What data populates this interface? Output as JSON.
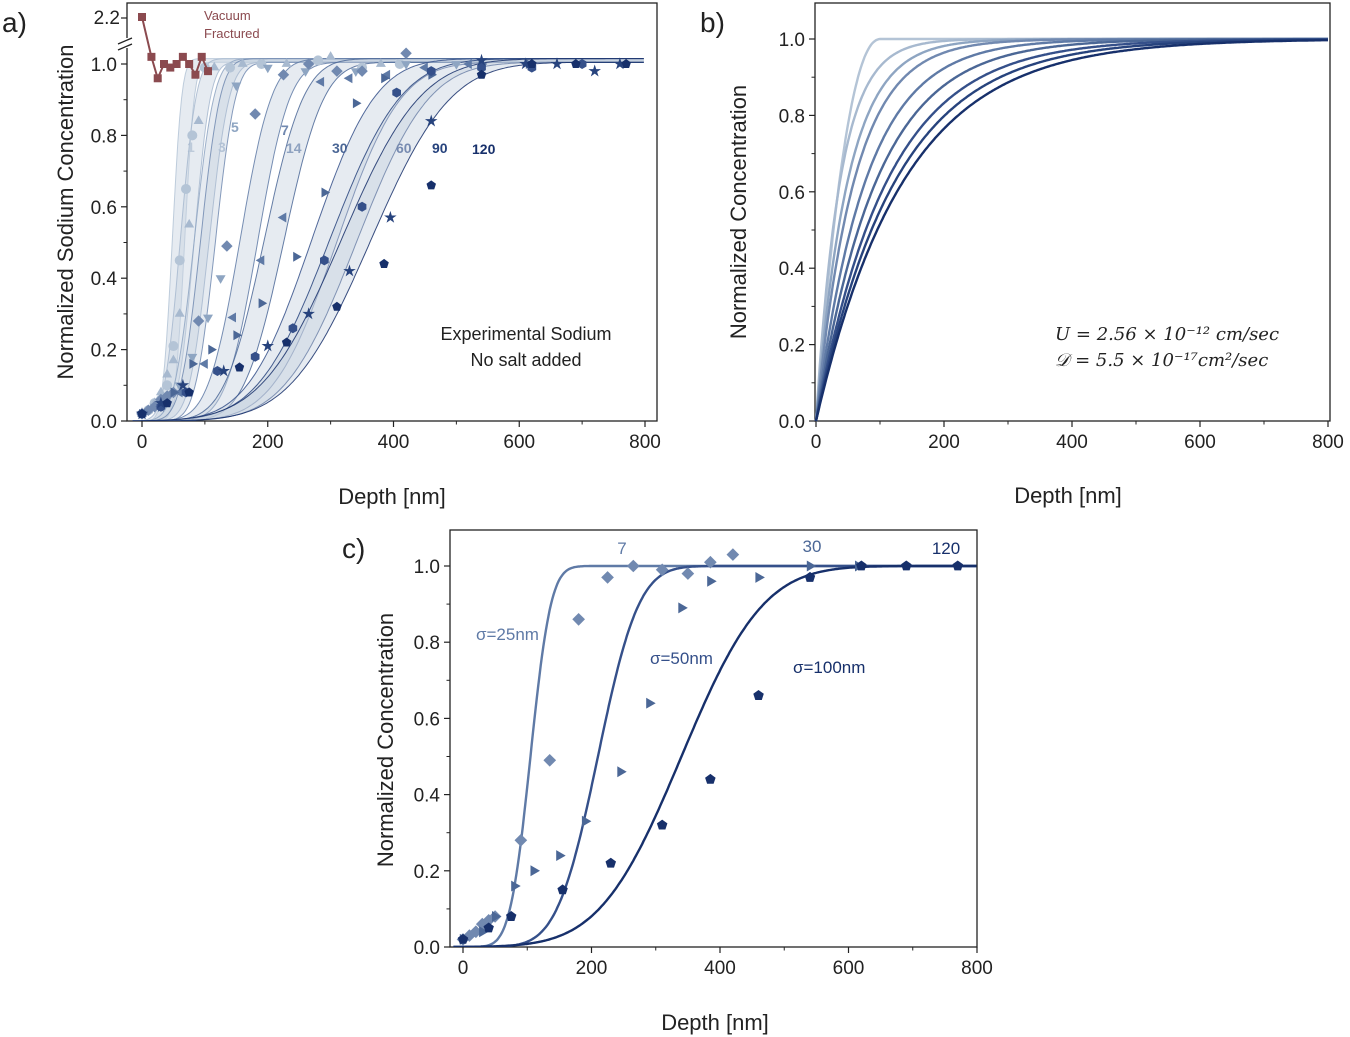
{
  "figure": {
    "panels": [
      {
        "label": "a)",
        "xlabel": "Depth [nm]",
        "ylabel": "Normalized Sodium Concentration",
        "xticks": [
          "0",
          "200",
          "400",
          "600",
          "800"
        ],
        "yticks": [
          "0.0",
          "0.2",
          "0.4",
          "0.6",
          "0.8",
          "1.0"
        ],
        "break_tick": "2.2",
        "annotation": [
          "Experimental Sodium",
          "No salt added"
        ],
        "vacuum_label": [
          "Vacuum",
          "Fractured"
        ],
        "series_labels": [
          "1",
          "3",
          "5",
          "7",
          "14",
          "30",
          "60",
          "90",
          "120"
        ]
      },
      {
        "label": "b)",
        "xlabel": "Depth [nm]",
        "ylabel": "Normalized Concentration",
        "xticks": [
          "0",
          "200",
          "400",
          "600",
          "800"
        ],
        "yticks": [
          "0.0",
          "0.2",
          "0.4",
          "0.6",
          "0.8",
          "1.0"
        ],
        "eq1": "U = 2.56 × 10⁻¹² cm/sec",
        "eq2": "𝒟 = 5.5 × 10⁻¹⁷cm²/sec"
      },
      {
        "label": "c)",
        "xlabel": "Depth [nm]",
        "ylabel": "Normalized Concentration",
        "xticks": [
          "0",
          "200",
          "400",
          "600",
          "800"
        ],
        "yticks": [
          "0.0",
          "0.2",
          "0.4",
          "0.6",
          "0.8",
          "1.0"
        ],
        "series_labels": [
          "7",
          "30",
          "120"
        ],
        "sigma_labels": [
          "σ=25nm",
          "σ=50nm",
          "σ=100nm"
        ]
      }
    ]
  },
  "colors": {
    "d1": "#b4c4d6",
    "d3": "#a7b9cf",
    "d5": "#8ea5c2",
    "d7": "#7189b0",
    "d14": "#5f7aa6",
    "d30": "#4b6796",
    "d60": "#35508a",
    "d90": "#27437d",
    "d120": "#17306b",
    "vacuum": "#8b4a4f",
    "band": "#c8d2df",
    "axis": "#222222"
  },
  "chart_data": [
    {
      "panel": "a",
      "type": "scatter",
      "title": "",
      "xlabel": "Depth [nm]",
      "ylabel": "Normalized Sodium Concentration",
      "xlim": [
        -15,
        800
      ],
      "ylim": [
        0,
        1.0
      ],
      "axis_break": {
        "above": 1.02,
        "label": "2.2"
      },
      "annotation": "Experimental Sodium / No salt added",
      "vacuum_fractured": {
        "label": "Vacuum Fractured",
        "x": [
          0,
          15,
          25,
          35,
          45,
          55,
          65,
          75,
          85,
          95,
          105
        ],
        "y": [
          2.2,
          1.02,
          0.96,
          1.0,
          0.99,
          1.0,
          1.02,
          1.0,
          0.97,
          1.02,
          0.98
        ]
      },
      "series": [
        {
          "name": "1",
          "marker": "circle",
          "sigma": 12,
          "center": 58,
          "x": [
            0,
            10,
            20,
            30,
            40,
            50,
            60,
            70,
            80,
            100,
            140,
            190,
            280,
            350,
            410
          ],
          "y": [
            0.02,
            0.03,
            0.05,
            0.06,
            0.1,
            0.21,
            0.45,
            0.65,
            0.8,
            0.99,
            0.99,
            1.0,
            1.01,
            0.99,
            1.0
          ]
        },
        {
          "name": "3",
          "marker": "triangle",
          "sigma": 20,
          "center": 72,
          "x": [
            0,
            10,
            20,
            30,
            40,
            50,
            60,
            75,
            90,
            115,
            160,
            230,
            300,
            380
          ],
          "y": [
            0.02,
            0.03,
            0.05,
            0.08,
            0.13,
            0.17,
            0.3,
            0.55,
            0.84,
            0.99,
            1.0,
            1.0,
            1.02,
            1.0
          ]
        },
        {
          "name": "5",
          "marker": "tri-down",
          "sigma": 25,
          "center": 95,
          "x": [
            0,
            20,
            40,
            60,
            80,
            105,
            125,
            150,
            200,
            260,
            340,
            420,
            500
          ],
          "y": [
            0.02,
            0.04,
            0.06,
            0.1,
            0.18,
            0.29,
            0.4,
            0.94,
            0.99,
            0.98,
            0.98,
            1.0,
            1.0
          ]
        },
        {
          "name": "7",
          "marker": "diamond",
          "sigma": 25,
          "center": 105,
          "x": [
            0,
            10,
            20,
            30,
            40,
            50,
            90,
            135,
            180,
            225,
            265,
            310,
            350,
            420
          ],
          "y": [
            0.02,
            0.03,
            0.04,
            0.06,
            0.07,
            0.08,
            0.28,
            0.49,
            0.86,
            0.97,
            1.0,
            0.98,
            0.98,
            1.03
          ]
        },
        {
          "name": "14",
          "marker": "tri-left",
          "sigma": 40,
          "center": 170,
          "x": [
            0,
            30,
            60,
            100,
            145,
            190,
            225,
            285,
            330,
            390,
            450,
            520
          ],
          "y": [
            0.02,
            0.04,
            0.08,
            0.16,
            0.29,
            0.45,
            0.57,
            0.95,
            0.96,
            0.97,
            0.99,
            1.0
          ]
        },
        {
          "name": "30",
          "marker": "tri-right",
          "sigma": 50,
          "center": 210,
          "x": [
            0,
            30,
            50,
            80,
            110,
            150,
            190,
            245,
            290,
            340,
            385,
            460,
            540,
            615
          ],
          "y": [
            0.02,
            0.04,
            0.08,
            0.16,
            0.2,
            0.24,
            0.33,
            0.46,
            0.64,
            0.89,
            0.96,
            0.97,
            1.0,
            1.0
          ]
        },
        {
          "name": "60",
          "marker": "hexagon",
          "sigma": 80,
          "center": 290,
          "x": [
            0,
            30,
            70,
            120,
            180,
            240,
            290,
            350,
            405,
            460,
            540,
            620,
            700
          ],
          "y": [
            0.02,
            0.04,
            0.08,
            0.14,
            0.18,
            0.26,
            0.45,
            0.6,
            0.92,
            0.98,
            0.99,
            0.99,
            1.0
          ]
        },
        {
          "name": "90",
          "marker": "star",
          "sigma": 90,
          "center": 320,
          "x": [
            0,
            30,
            65,
            130,
            200,
            265,
            330,
            395,
            460,
            540,
            610,
            660,
            720,
            760
          ],
          "y": [
            0.02,
            0.05,
            0.1,
            0.14,
            0.21,
            0.3,
            0.42,
            0.57,
            0.84,
            1.01,
            1.0,
            1.0,
            0.98,
            1.0
          ]
        },
        {
          "name": "120",
          "marker": "pentagon",
          "sigma": 100,
          "center": 340,
          "x": [
            0,
            40,
            75,
            155,
            230,
            310,
            385,
            460,
            540,
            620,
            690,
            770
          ],
          "y": [
            0.02,
            0.05,
            0.08,
            0.15,
            0.22,
            0.32,
            0.44,
            0.66,
            0.97,
            1.0,
            1.0,
            1.0
          ]
        }
      ]
    },
    {
      "panel": "b",
      "type": "line",
      "title": "",
      "xlabel": "Depth [nm]",
      "ylabel": "Normalized Concentration",
      "xlim": [
        0,
        800
      ],
      "ylim": [
        0,
        1.1
      ],
      "parameters": {
        "U": "2.56 × 10^-12 cm/sec",
        "D": "5.5 × 10^-17 cm^2/sec"
      },
      "series": [
        {
          "name": "1",
          "decay_length_nm": 22
        },
        {
          "name": "3",
          "decay_length_nm": 38
        },
        {
          "name": "5",
          "decay_length_nm": 50
        },
        {
          "name": "7",
          "decay_length_nm": 60
        },
        {
          "name": "14",
          "decay_length_nm": 78
        },
        {
          "name": "30",
          "decay_length_nm": 95
        },
        {
          "name": "60",
          "decay_length_nm": 112
        },
        {
          "name": "90",
          "decay_length_nm": 125
        },
        {
          "name": "120",
          "decay_length_nm": 138
        }
      ]
    },
    {
      "panel": "c",
      "type": "scatter",
      "title": "",
      "xlabel": "Depth [nm]",
      "ylabel": "Normalized Concentration",
      "xlim": [
        -15,
        800
      ],
      "ylim": [
        0,
        1.1
      ],
      "series": [
        {
          "name": "7",
          "fit_label": "σ=25nm",
          "sigma": 25,
          "center": 105,
          "marker": "diamond",
          "x": [
            0,
            10,
            20,
            30,
            40,
            50,
            90,
            135,
            180,
            225,
            265,
            310,
            350,
            385,
            420
          ],
          "y": [
            0.02,
            0.03,
            0.04,
            0.06,
            0.07,
            0.08,
            0.28,
            0.49,
            0.86,
            0.97,
            1.0,
            0.99,
            0.98,
            1.01,
            1.03
          ]
        },
        {
          "name": "30",
          "fit_label": "σ=50nm",
          "sigma": 50,
          "center": 210,
          "marker": "tri-right",
          "x": [
            0,
            30,
            50,
            80,
            110,
            150,
            190,
            245,
            290,
            340,
            385,
            460,
            540,
            615
          ],
          "y": [
            0.02,
            0.04,
            0.08,
            0.16,
            0.2,
            0.24,
            0.33,
            0.46,
            0.64,
            0.89,
            0.96,
            0.97,
            1.0,
            1.0
          ]
        },
        {
          "name": "120",
          "fit_label": "σ=100nm",
          "sigma": 100,
          "center": 340,
          "marker": "pentagon",
          "x": [
            0,
            40,
            75,
            155,
            230,
            310,
            385,
            460,
            540,
            620,
            690,
            770
          ],
          "y": [
            0.02,
            0.05,
            0.08,
            0.15,
            0.22,
            0.32,
            0.44,
            0.66,
            0.97,
            1.0,
            1.0,
            1.0
          ]
        }
      ]
    }
  ]
}
